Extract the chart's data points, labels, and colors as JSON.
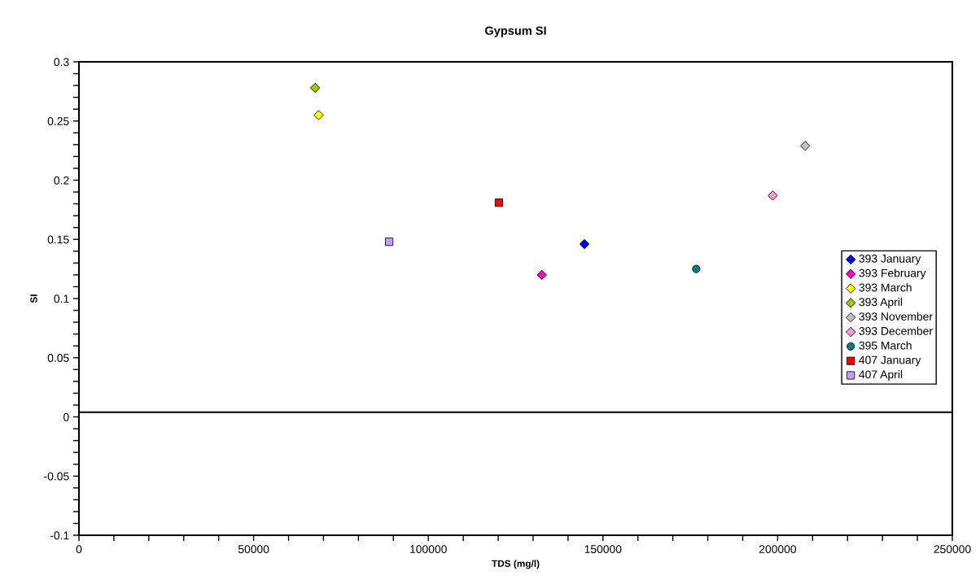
{
  "chart_data": {
    "type": "scatter",
    "title": "Gypsum SI",
    "xlabel": "TDS (mg/l)",
    "ylabel": "SI",
    "xlim": [
      0,
      250000
    ],
    "ylim": [
      -0.1,
      0.3
    ],
    "xticks": [
      0,
      {
        "value": 10000,
        "label": null
      },
      {
        "value": 20000,
        "label": null
      },
      {
        "value": 30000,
        "label": null
      },
      {
        "value": 40000,
        "label": null
      },
      50000,
      {
        "value": 60000,
        "label": null
      },
      {
        "value": 70000,
        "label": null
      },
      {
        "value": 80000,
        "label": null
      },
      {
        "value": 90000,
        "label": null
      },
      100000,
      {
        "value": 110000,
        "label": null
      },
      {
        "value": 120000,
        "label": null
      },
      {
        "value": 130000,
        "label": null
      },
      {
        "value": 140000,
        "label": null
      },
      150000,
      {
        "value": 160000,
        "label": null
      },
      {
        "value": 170000,
        "label": null
      },
      {
        "value": 180000,
        "label": null
      },
      {
        "value": 190000,
        "label": null
      },
      200000,
      {
        "value": 210000,
        "label": null
      },
      {
        "value": 220000,
        "label": null
      },
      {
        "value": 230000,
        "label": null
      },
      {
        "value": 240000,
        "label": null
      },
      250000
    ],
    "yticks": [
      -0.1,
      {
        "value": -0.09,
        "label": null
      },
      {
        "value": -0.08,
        "label": null
      },
      {
        "value": -0.07,
        "label": null
      },
      {
        "value": -0.06,
        "label": null
      },
      -0.05,
      {
        "value": -0.04,
        "label": null
      },
      {
        "value": -0.03,
        "label": null
      },
      {
        "value": -0.02,
        "label": null
      },
      {
        "value": -0.01,
        "label": null
      },
      0,
      {
        "value": 0.01,
        "label": null
      },
      {
        "value": 0.02,
        "label": null
      },
      {
        "value": 0.03,
        "label": null
      },
      {
        "value": 0.04,
        "label": null
      },
      0.05,
      {
        "value": 0.06,
        "label": null
      },
      {
        "value": 0.07,
        "label": null
      },
      {
        "value": 0.08,
        "label": null
      },
      {
        "value": 0.09,
        "label": null
      },
      0.1,
      {
        "value": 0.11,
        "label": null
      },
      {
        "value": 0.12,
        "label": null
      },
      {
        "value": 0.13,
        "label": null
      },
      {
        "value": 0.14,
        "label": null
      },
      0.15,
      {
        "value": 0.16,
        "label": null
      },
      {
        "value": 0.17,
        "label": null
      },
      {
        "value": 0.18,
        "label": null
      },
      {
        "value": 0.19,
        "label": null
      },
      0.2,
      {
        "value": 0.21,
        "label": null
      },
      {
        "value": 0.22,
        "label": null
      },
      {
        "value": 0.23,
        "label": null
      },
      {
        "value": 0.24,
        "label": null
      },
      0.25,
      {
        "value": 0.26,
        "label": null
      },
      {
        "value": 0.27,
        "label": null
      },
      {
        "value": 0.28,
        "label": null
      },
      {
        "value": 0.29,
        "label": null
      },
      0.3
    ],
    "grid": false,
    "legend": "right",
    "ref_lines": [
      {
        "axis": "y",
        "value": 0.004,
        "color": "#000000"
      }
    ],
    "series": [
      {
        "name": "393 January",
        "color": "#0000ff",
        "marker": "diamond",
        "x": [
          144700
        ],
        "values": [
          0.146
        ]
      },
      {
        "name": "393 February",
        "color": "#ff00cc",
        "marker": "diamond",
        "x": [
          132500
        ],
        "values": [
          0.12
        ]
      },
      {
        "name": "393 March",
        "color": "#ffff00",
        "marker": "diamond",
        "x": [
          68600
        ],
        "values": [
          0.255
        ]
      },
      {
        "name": "393 April",
        "color": "#99cc00",
        "marker": "diamond",
        "x": [
          67600
        ],
        "values": [
          0.278
        ]
      },
      {
        "name": "393 November",
        "color": "#c0c0c0",
        "marker": "diamond",
        "x": [
          207900
        ],
        "values": [
          0.229
        ]
      },
      {
        "name": "393 December",
        "color": "#ff99cc",
        "marker": "diamond",
        "x": [
          198600
        ],
        "values": [
          0.187
        ]
      },
      {
        "name": "395 March",
        "color": "#008080",
        "marker": "circle",
        "x": [
          176700
        ],
        "values": [
          0.125
        ]
      },
      {
        "name": "407 January",
        "color": "#ff0000",
        "marker": "square",
        "x": [
          120200
        ],
        "values": [
          0.181
        ]
      },
      {
        "name": "407 April",
        "color": "#cc99ff",
        "marker": "square",
        "x": [
          88800
        ],
        "values": [
          0.148
        ]
      }
    ]
  }
}
